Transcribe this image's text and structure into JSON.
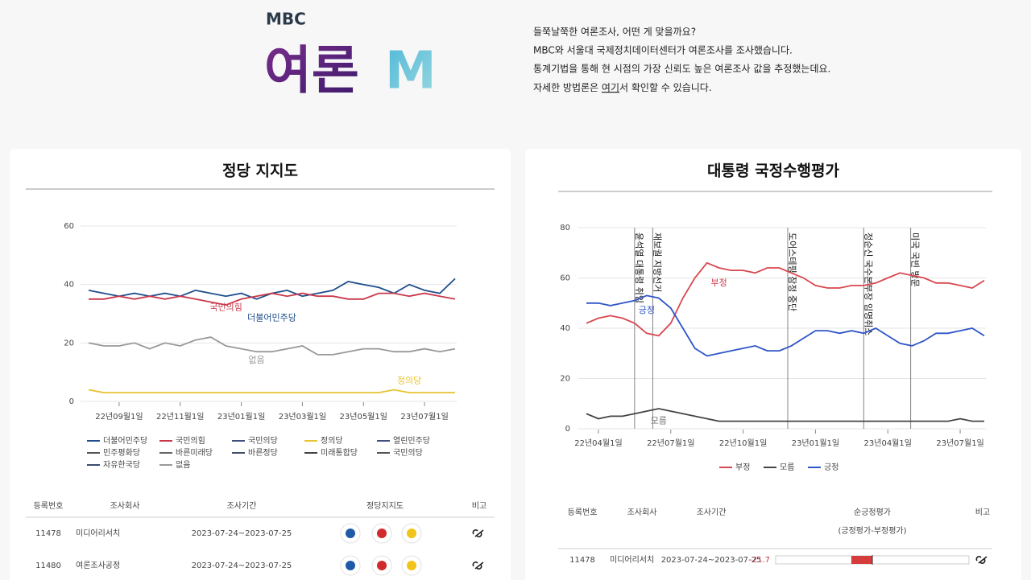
{
  "header": {
    "logo_top": "MBC",
    "logo_main": "여론",
    "logo_accent": "M",
    "intro": [
      "들쭉날쭉한 여론조사, 어떤 게 맞을까요?",
      "MBC와 서울대 국제정치데이터센터가 여론조사를 조사했습니다.",
      "통계기법을 통해 현 시점의 가장 신뢰도 높은 여론조사 값을 추정했는데요."
    ],
    "intro_link": {
      "before": "자세한 방법론은 ",
      "link": "여기",
      "after": "서 확인할 수 있습니다."
    }
  },
  "chart_data": [
    {
      "type": "line",
      "title": "정당 지지도",
      "categories": [
        null,
        null,
        "22년09월1일",
        null,
        null,
        null,
        "22년11월1일",
        null,
        null,
        null,
        "23년01월1일",
        null,
        null,
        null,
        "23년03월1일",
        null,
        null,
        null,
        "23년05월1일",
        null,
        null,
        null,
        "23년07월1일",
        null,
        null
      ],
      "ylim": [
        0,
        60
      ],
      "yticks": [
        0,
        20,
        40,
        60
      ],
      "grid": true,
      "legend": "bottom",
      "series": [
        {
          "name": "더불어민주당",
          "color": "#1f4e8c",
          "values": [
            38,
            37,
            36,
            37,
            36,
            37,
            36,
            38,
            37,
            36,
            37,
            35,
            37,
            38,
            36,
            37,
            38,
            41,
            40,
            39,
            37,
            40,
            38,
            37,
            42
          ]
        },
        {
          "name": "국민의힘",
          "color": "#c8384a",
          "values": [
            35,
            35,
            36,
            35,
            36,
            35,
            36,
            35,
            34,
            33,
            35,
            36,
            37,
            36,
            37,
            36,
            36,
            35,
            35,
            37,
            37,
            36,
            37,
            36,
            35
          ]
        },
        {
          "name": "국민의당",
          "color": "#3d4f7a",
          "values": [
            null,
            null,
            null,
            null,
            null,
            null,
            null,
            null,
            null,
            null,
            null,
            null,
            null,
            null,
            null,
            null,
            null,
            null,
            null,
            null,
            null,
            null,
            null,
            null,
            null
          ]
        },
        {
          "name": "정의당",
          "color": "#e8c230",
          "values": [
            4,
            3,
            3,
            3,
            3,
            3,
            3,
            3,
            3,
            3,
            3,
            3,
            3,
            3,
            3,
            3,
            3,
            3,
            3,
            3,
            4,
            3,
            3,
            3,
            3
          ]
        },
        {
          "name": "열린민주당",
          "color": "#3d4f7a",
          "values": [
            null,
            null,
            null,
            null,
            null,
            null,
            null,
            null,
            null,
            null,
            null,
            null,
            null,
            null,
            null,
            null,
            null,
            null,
            null,
            null,
            null,
            null,
            null,
            null,
            null
          ]
        },
        {
          "name": "민주평화당",
          "color": "#555555",
          "values": [
            null,
            null,
            null,
            null,
            null,
            null,
            null,
            null,
            null,
            null,
            null,
            null,
            null,
            null,
            null,
            null,
            null,
            null,
            null,
            null,
            null,
            null,
            null,
            null,
            null
          ]
        },
        {
          "name": "바른미래당",
          "color": "#666666",
          "values": [
            null,
            null,
            null,
            null,
            null,
            null,
            null,
            null,
            null,
            null,
            null,
            null,
            null,
            null,
            null,
            null,
            null,
            null,
            null,
            null,
            null,
            null,
            null,
            null,
            null
          ]
        },
        {
          "name": "바른정당",
          "color": "#44506a",
          "values": [
            null,
            null,
            null,
            null,
            null,
            null,
            null,
            null,
            null,
            null,
            null,
            null,
            null,
            null,
            null,
            null,
            null,
            null,
            null,
            null,
            null,
            null,
            null,
            null,
            null
          ]
        },
        {
          "name": "미래통합당",
          "color": "#444444",
          "values": [
            null,
            null,
            null,
            null,
            null,
            null,
            null,
            null,
            null,
            null,
            null,
            null,
            null,
            null,
            null,
            null,
            null,
            null,
            null,
            null,
            null,
            null,
            null,
            null,
            null
          ]
        },
        {
          "name": "국민의당",
          "color": "#555555",
          "values": [
            null,
            null,
            null,
            null,
            null,
            null,
            null,
            null,
            null,
            null,
            null,
            null,
            null,
            null,
            null,
            null,
            null,
            null,
            null,
            null,
            null,
            null,
            null,
            null,
            null
          ]
        },
        {
          "name": "자유한국당",
          "color": "#3a4a70",
          "values": [
            null,
            null,
            null,
            null,
            null,
            null,
            null,
            null,
            null,
            null,
            null,
            null,
            null,
            null,
            null,
            null,
            null,
            null,
            null,
            null,
            null,
            null,
            null,
            null,
            null
          ]
        },
        {
          "name": "없음",
          "color": "#999999",
          "values": [
            20,
            19,
            19,
            20,
            18,
            20,
            19,
            21,
            22,
            19,
            18,
            17,
            17,
            18,
            19,
            16,
            16,
            17,
            18,
            18,
            17,
            17,
            18,
            17,
            18
          ]
        }
      ],
      "annotations": [
        {
          "text": "국민의힘",
          "x": 9,
          "y": 32,
          "color": "#c8384a"
        },
        {
          "text": "더불어민주당",
          "x": 12,
          "y": 28.5,
          "color": "#1f4e8c"
        },
        {
          "text": "없음",
          "x": 11,
          "y": 14,
          "color": "#999999"
        },
        {
          "text": "정의당",
          "x": 21,
          "y": 7,
          "color": "#e8c230"
        }
      ]
    },
    {
      "type": "line",
      "title": "대통령 국정수행평가",
      "categories": [
        null,
        "22년04월1일",
        null,
        null,
        null,
        null,
        null,
        "22년07월1일",
        null,
        null,
        null,
        null,
        null,
        "22년10월1일",
        null,
        null,
        null,
        null,
        null,
        "23년01월1일",
        null,
        null,
        null,
        null,
        null,
        "23년04월1일",
        null,
        null,
        null,
        null,
        null,
        "23년07월1일",
        null,
        null
      ],
      "ylim": [
        0,
        80
      ],
      "yticks": [
        0,
        20,
        40,
        60,
        80
      ],
      "grid": true,
      "legend": "bottom",
      "series": [
        {
          "name": "부정",
          "color": "#d9474f",
          "values": [
            42,
            44,
            45,
            44,
            42,
            38,
            37,
            42,
            52,
            60,
            66,
            64,
            63,
            63,
            62,
            64,
            64,
            62,
            60,
            57,
            56,
            56,
            57,
            57,
            58,
            60,
            62,
            61,
            60,
            58,
            58,
            57,
            56,
            59
          ]
        },
        {
          "name": "모름",
          "color": "#444444",
          "values": [
            6,
            4,
            5,
            5,
            6,
            7,
            8,
            7,
            6,
            5,
            4,
            3,
            3,
            3,
            3,
            3,
            3,
            3,
            3,
            3,
            3,
            3,
            3,
            3,
            3,
            3,
            3,
            3,
            3,
            3,
            3,
            4,
            3,
            3
          ]
        },
        {
          "name": "긍정",
          "color": "#2f55c8",
          "values": [
            50,
            50,
            49,
            50,
            51,
            53,
            52,
            48,
            40,
            32,
            29,
            30,
            31,
            32,
            33,
            31,
            31,
            33,
            36,
            39,
            39,
            38,
            39,
            38,
            40,
            37,
            34,
            33,
            35,
            38,
            38,
            39,
            40,
            37
          ]
        }
      ],
      "events": [
        {
          "label": "윤석열 대통령 취임",
          "x": 4
        },
        {
          "label": "재보궐 지방선거",
          "x": 5.5
        },
        {
          "label": "도어스테핑 잠정 중단",
          "x": 16.7
        },
        {
          "label": "정순신 국수본부장 임명취소",
          "x": 23
        },
        {
          "label": "미국 국빈 방문",
          "x": 26.9
        }
      ],
      "annotations": [
        {
          "text": "부정",
          "x": 11,
          "y": 58,
          "color": "#c8384a"
        },
        {
          "text": "긍정",
          "x": 5,
          "y": 47,
          "color": "#2f55c8"
        },
        {
          "text": "모름",
          "x": 6,
          "y": 3,
          "color": "#777777"
        }
      ]
    }
  ],
  "tables": [
    {
      "columns": [
        "등록번호",
        "조사회사",
        "조사기간",
        "정당지지도",
        "비고"
      ],
      "rows": [
        [
          11478,
          "미디어리서치",
          "2023-07-24~2023-07-25"
        ],
        [
          11480,
          "여론조사공정",
          "2023-07-24~2023-07-25"
        ]
      ]
    },
    {
      "columns": [
        "등록번호",
        "조사회사",
        "조사기간",
        "순긍정평가",
        "비고"
      ],
      "column_note": "(긍정평가-부정평가)",
      "xlim": [
        -100,
        100
      ],
      "rows": [
        [
          11478,
          "미디어리서치",
          "2023-07-24~2023-07-25",
          -21.7
        ]
      ]
    }
  ]
}
